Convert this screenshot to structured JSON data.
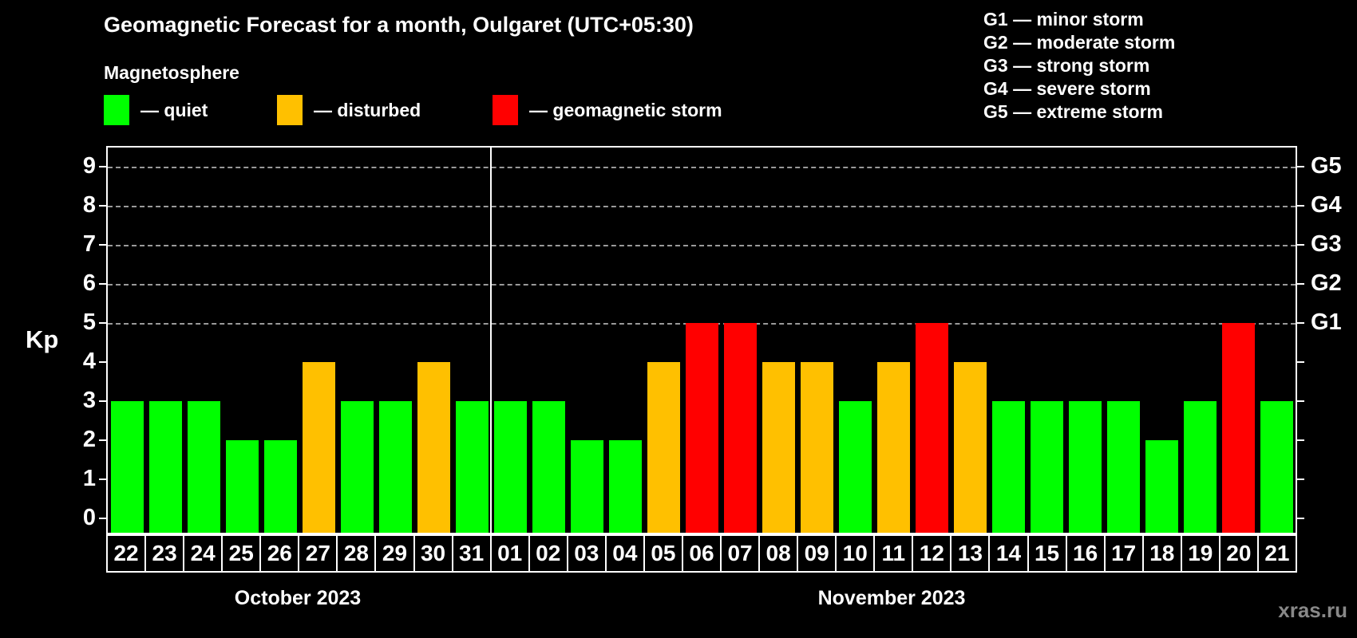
{
  "title": "Geomagnetic Forecast for a month, Oulgaret (UTC+05:30)",
  "subtitle": "Magnetosphere",
  "legend": {
    "items": [
      {
        "label": "— quiet",
        "status": "quiet"
      },
      {
        "label": "— disturbed",
        "status": "disturbed"
      },
      {
        "label": "— geomagnetic storm",
        "status": "storm"
      }
    ]
  },
  "g_legend": [
    "G1 — minor storm",
    "G2 — moderate storm",
    "G3 — strong storm",
    "G4 — severe storm",
    "G5 — extreme storm"
  ],
  "watermark": "xras.ru",
  "colors": {
    "quiet": "#00ff00",
    "disturbed": "#ffc000",
    "storm": "#ff0000",
    "background": "#000000",
    "grid": "#9a9a9a",
    "frame": "#ffffff",
    "watermark": "#888888"
  },
  "chart_data": {
    "type": "bar",
    "title": "Geomagnetic Forecast for a month, Oulgaret (UTC+05:30)",
    "ylabel": "Kp",
    "ylim": [
      0,
      9
    ],
    "yticks": [
      "0",
      "1",
      "2",
      "3",
      "4",
      "5",
      "6",
      "7",
      "8",
      "9"
    ],
    "gridlines": [
      5,
      6,
      7,
      8,
      9
    ],
    "right_axis_labels": [
      {
        "value": 5,
        "label": "G1"
      },
      {
        "value": 6,
        "label": "G2"
      },
      {
        "value": 7,
        "label": "G3"
      },
      {
        "value": 8,
        "label": "G4"
      },
      {
        "value": 9,
        "label": "G5"
      }
    ],
    "months": [
      {
        "label": "October 2023",
        "days": 10
      },
      {
        "label": "November 2023",
        "days": 21
      }
    ],
    "categories": [
      "22",
      "23",
      "24",
      "25",
      "26",
      "27",
      "28",
      "29",
      "30",
      "31",
      "01",
      "02",
      "03",
      "04",
      "05",
      "06",
      "07",
      "08",
      "09",
      "10",
      "11",
      "12",
      "13",
      "14",
      "15",
      "16",
      "17",
      "18",
      "19",
      "20",
      "21"
    ],
    "values": [
      3,
      3,
      3,
      2,
      2,
      4,
      3,
      3,
      4,
      3,
      3,
      3,
      2,
      2,
      4,
      5,
      5,
      4,
      4,
      3,
      4,
      5,
      4,
      3,
      3,
      3,
      3,
      2,
      3,
      5,
      3
    ],
    "statuses": [
      "quiet",
      "quiet",
      "quiet",
      "quiet",
      "quiet",
      "disturbed",
      "quiet",
      "quiet",
      "disturbed",
      "quiet",
      "quiet",
      "quiet",
      "quiet",
      "quiet",
      "disturbed",
      "storm",
      "storm",
      "disturbed",
      "disturbed",
      "quiet",
      "disturbed",
      "storm",
      "disturbed",
      "quiet",
      "quiet",
      "quiet",
      "quiet",
      "quiet",
      "quiet",
      "storm",
      "quiet"
    ]
  }
}
